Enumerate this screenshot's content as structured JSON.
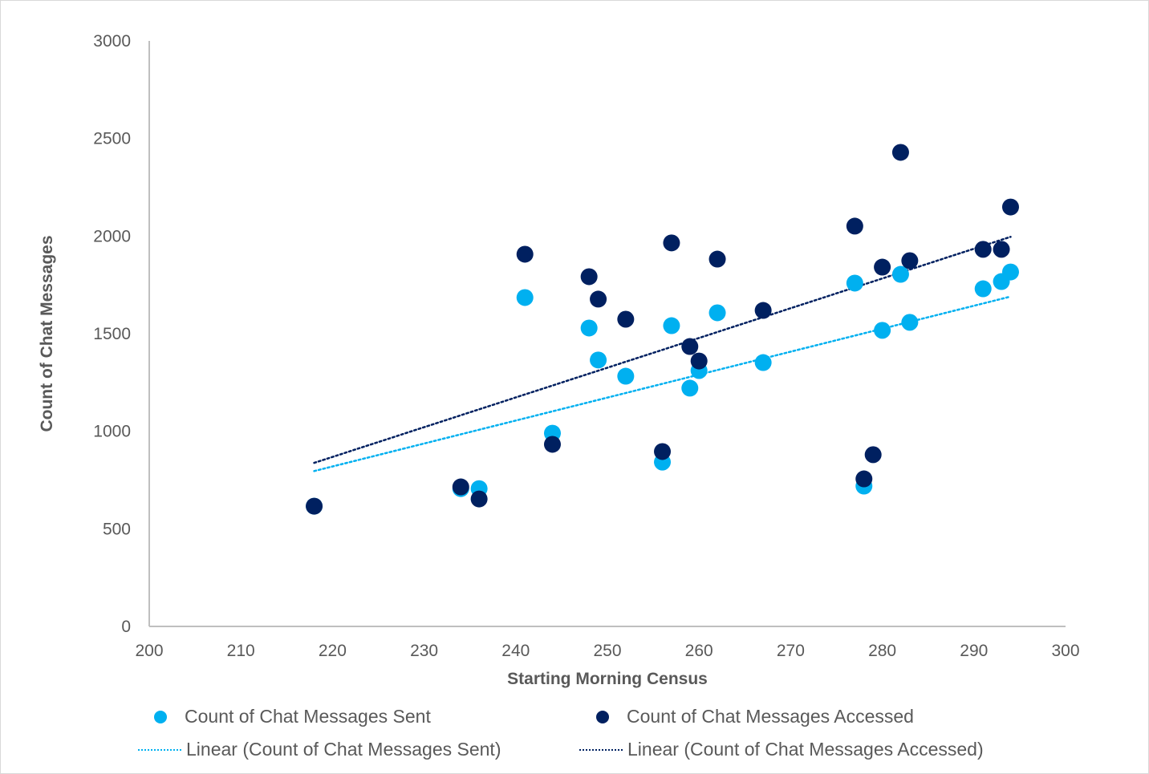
{
  "chart_data": {
    "type": "scatter",
    "title": "",
    "xlabel": "Starting Morning Census",
    "ylabel": "Count of Chat Messages",
    "xlim": [
      200,
      300
    ],
    "ylim": [
      0,
      3000
    ],
    "x_ticks": [
      "200",
      "210",
      "220",
      "230",
      "240",
      "250",
      "260",
      "270",
      "280",
      "290",
      "300"
    ],
    "y_ticks": [
      "0",
      "500",
      "1000",
      "1500",
      "2000",
      "2500",
      "3000"
    ],
    "grid": false,
    "legend_position": "bottom",
    "series": [
      {
        "name": "Count of Chat Messages Sent",
        "color": "#00b0f0",
        "points": [
          [
            218,
            616
          ],
          [
            234,
            706
          ],
          [
            236,
            706
          ],
          [
            241,
            1685
          ],
          [
            244,
            990
          ],
          [
            248,
            1529
          ],
          [
            249,
            1365
          ],
          [
            252,
            1282
          ],
          [
            256,
            842
          ],
          [
            257,
            1541
          ],
          [
            259,
            1221
          ],
          [
            260,
            1311
          ],
          [
            262,
            1607
          ],
          [
            267,
            1352
          ],
          [
            277,
            1759
          ],
          [
            278,
            719
          ],
          [
            280,
            1517
          ],
          [
            282,
            1804
          ],
          [
            283,
            1558
          ],
          [
            291,
            1730
          ],
          [
            293,
            1767
          ],
          [
            294,
            1816
          ]
        ]
      },
      {
        "name": "Count of Chat Messages Accessed",
        "color": "#002060",
        "points": [
          [
            218,
            616
          ],
          [
            234,
            715
          ],
          [
            236,
            653
          ],
          [
            241,
            1907
          ],
          [
            244,
            933
          ],
          [
            248,
            1792
          ],
          [
            249,
            1677
          ],
          [
            252,
            1574
          ],
          [
            256,
            896
          ],
          [
            257,
            1965
          ],
          [
            259,
            1434
          ],
          [
            260,
            1360
          ],
          [
            262,
            1882
          ],
          [
            267,
            1619
          ],
          [
            277,
            2051
          ],
          [
            278,
            756
          ],
          [
            279,
            880
          ],
          [
            280,
            1841
          ],
          [
            282,
            2429
          ],
          [
            283,
            1874
          ],
          [
            291,
            1932
          ],
          [
            293,
            1932
          ],
          [
            294,
            2149
          ]
        ]
      }
    ],
    "trendlines": [
      {
        "name": "Linear (Count of Chat Messages Sent)",
        "color": "#00b0f0",
        "from": [
          218,
          796
        ],
        "to": [
          294,
          1690
        ]
      },
      {
        "name": "Linear (Count of Chat Messages Accessed)",
        "color": "#002060",
        "from": [
          218,
          838
        ],
        "to": [
          294,
          1996
        ]
      }
    ]
  }
}
